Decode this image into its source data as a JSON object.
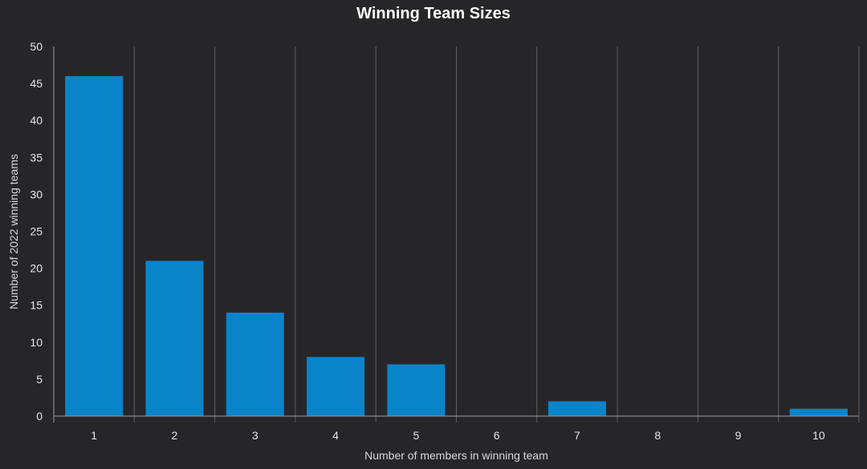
{
  "chart_data": {
    "type": "bar",
    "title": "Winning Team Sizes",
    "xlabel": "Number of members in winning team",
    "ylabel": "Number of 2022 winning teams",
    "categories": [
      "1",
      "2",
      "3",
      "4",
      "5",
      "6",
      "7",
      "8",
      "9",
      "10"
    ],
    "values": [
      46,
      21,
      14,
      8,
      7,
      0,
      2,
      0,
      0,
      1
    ],
    "ylim": [
      0,
      50
    ],
    "yticks": [
      0,
      5,
      10,
      15,
      20,
      25,
      30,
      35,
      40,
      45,
      50
    ],
    "grid": "vertical category separators",
    "legend": "none"
  },
  "colors": {
    "background": "#262629",
    "bar": "#0a84c9",
    "grid": "#5a606a",
    "axis": "#9aa0a8",
    "text": "#e6e6e6"
  }
}
